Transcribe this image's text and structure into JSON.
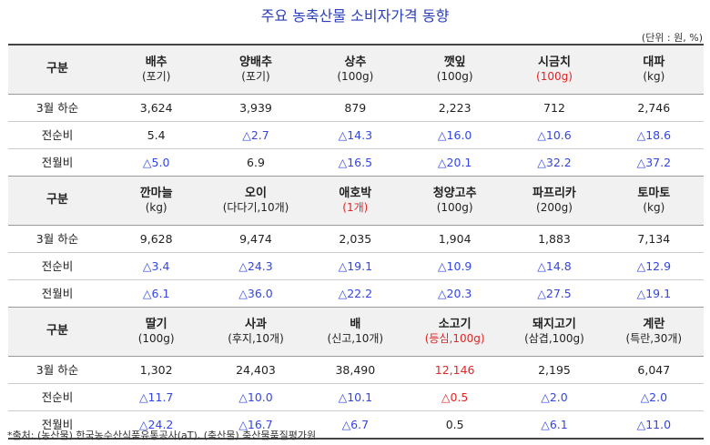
{
  "title": "주요 농축산물 소비자가격 동향",
  "unit": "(단위 : 원, %)",
  "row_labels": {
    "category": "구분",
    "price": "3월 하순",
    "vs_prev_period": "전순비",
    "vs_prev_month": "전월비"
  },
  "groups": [
    {
      "items": [
        {
          "name": "배추",
          "spec": "(포기)",
          "spec_red": false,
          "price": "3,624",
          "price_red": false,
          "prev_period": "5.4",
          "prev_period_blue": false,
          "prev_month": "△5.0",
          "prev_month_blue": true
        },
        {
          "name": "양배추",
          "spec": "(포기)",
          "spec_red": false,
          "price": "3,939",
          "price_red": false,
          "prev_period": "△2.7",
          "prev_period_blue": true,
          "prev_month": "6.9",
          "prev_month_blue": false
        },
        {
          "name": "상추",
          "spec": "(100g)",
          "spec_red": false,
          "price": "879",
          "price_red": false,
          "prev_period": "△14.3",
          "prev_period_blue": true,
          "prev_month": "△16.5",
          "prev_month_blue": true
        },
        {
          "name": "깻잎",
          "spec": "(100g)",
          "spec_red": false,
          "price": "2,223",
          "price_red": false,
          "prev_period": "△16.0",
          "prev_period_blue": true,
          "prev_month": "△20.1",
          "prev_month_blue": true
        },
        {
          "name": "시금치",
          "spec": "(100g)",
          "spec_red": true,
          "price": "712",
          "price_red": false,
          "prev_period": "△10.6",
          "prev_period_blue": true,
          "prev_month": "△32.2",
          "prev_month_blue": true
        },
        {
          "name": "대파",
          "spec": "(kg)",
          "spec_red": false,
          "price": "2,746",
          "price_red": false,
          "prev_period": "△18.6",
          "prev_period_blue": true,
          "prev_month": "△37.2",
          "prev_month_blue": true
        }
      ]
    },
    {
      "items": [
        {
          "name": "깐마늘",
          "spec": "(kg)",
          "spec_red": false,
          "price": "9,628",
          "price_red": false,
          "prev_period": "△3.4",
          "prev_period_blue": true,
          "prev_month": "△6.1",
          "prev_month_blue": true
        },
        {
          "name": "오이",
          "spec": "(다다기,10개)",
          "spec_red": false,
          "price": "9,474",
          "price_red": false,
          "prev_period": "△24.3",
          "prev_period_blue": true,
          "prev_month": "△36.0",
          "prev_month_blue": true
        },
        {
          "name": "애호박",
          "spec": "(1개)",
          "spec_red": true,
          "price": "2,035",
          "price_red": false,
          "prev_period": "△19.1",
          "prev_period_blue": true,
          "prev_month": "△22.2",
          "prev_month_blue": true
        },
        {
          "name": "청양고추",
          "spec": "(100g)",
          "spec_red": false,
          "price": "1,904",
          "price_red": false,
          "prev_period": "△10.9",
          "prev_period_blue": true,
          "prev_month": "△20.3",
          "prev_month_blue": true
        },
        {
          "name": "파프리카",
          "spec": "(200g)",
          "spec_red": false,
          "price": "1,883",
          "price_red": false,
          "prev_period": "△14.8",
          "prev_period_blue": true,
          "prev_month": "△27.5",
          "prev_month_blue": true
        },
        {
          "name": "토마토",
          "spec": "(kg)",
          "spec_red": false,
          "price": "7,134",
          "price_red": false,
          "prev_period": "△12.9",
          "prev_period_blue": true,
          "prev_month": "△19.1",
          "prev_month_blue": true
        }
      ]
    },
    {
      "items": [
        {
          "name": "딸기",
          "spec": "(100g)",
          "spec_red": false,
          "price": "1,302",
          "price_red": false,
          "prev_period": "△11.7",
          "prev_period_blue": true,
          "prev_month": "△24.2",
          "prev_month_blue": true
        },
        {
          "name": "사과",
          "spec": "(후지,10개)",
          "spec_red": false,
          "price": "24,403",
          "price_red": false,
          "prev_period": "△10.0",
          "prev_period_blue": true,
          "prev_month": "△16.7",
          "prev_month_blue": true
        },
        {
          "name": "배",
          "spec": "(신고,10개)",
          "spec_red": false,
          "price": "38,490",
          "price_red": false,
          "prev_period": "△10.1",
          "prev_period_blue": true,
          "prev_month": "△6.7",
          "prev_month_blue": true
        },
        {
          "name": "소고기",
          "spec": "(등심,100g)",
          "spec_red": true,
          "price": "12,146",
          "price_red": true,
          "prev_period": "△0.5",
          "prev_period_red": true,
          "prev_period_blue": false,
          "prev_month": "0.5",
          "prev_month_blue": false
        },
        {
          "name": "돼지고기",
          "spec": "(삼겹,100g)",
          "spec_red": false,
          "price": "2,195",
          "price_red": false,
          "prev_period": "△2.0",
          "prev_period_blue": true,
          "prev_month": "△6.1",
          "prev_month_blue": true
        },
        {
          "name": "계란",
          "spec": "(특란,30개)",
          "spec_red": false,
          "price": "6,047",
          "price_red": false,
          "prev_period": "△2.0",
          "prev_period_blue": true,
          "prev_month": "△11.0",
          "prev_month_blue": true
        }
      ]
    }
  ],
  "colors": {
    "blue_decrease": "#3346e0",
    "red_highlight": "#e02626",
    "title": "#2a3fb8",
    "header_bg": "#f1f1f1"
  },
  "source": "*출처: (농산물) 한국농수산식품유통공사(aT), (축산물) 축산물품질평가원"
}
